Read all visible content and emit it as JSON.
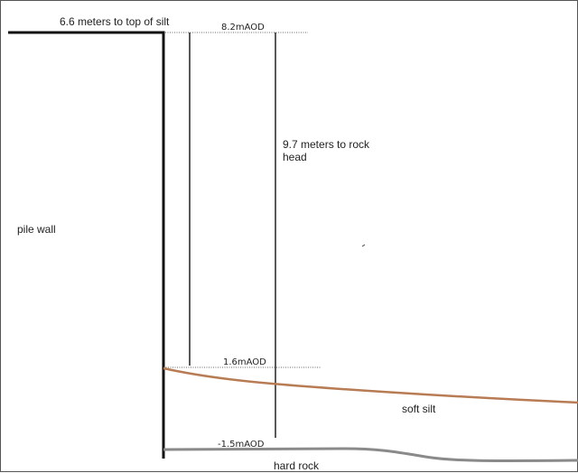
{
  "labels": {
    "top_silt_distance": "6.6 meters to top of silt",
    "level_top": "8.2mAOD",
    "rock_distance": "9.7 meters to rock head",
    "pile_wall": "pile wall",
    "level_silt": "1.6mAOD",
    "soft_silt": "soft silt",
    "level_rock": "-1.5mAOD",
    "hard_rock": "hard rock"
  },
  "colors": {
    "wall": "#111111",
    "dimension_line": "#222222",
    "dotted_reference": "#666666",
    "silt_line": "#b87c55",
    "rock_line": "#8a8a8a",
    "frame": "#555555"
  }
}
